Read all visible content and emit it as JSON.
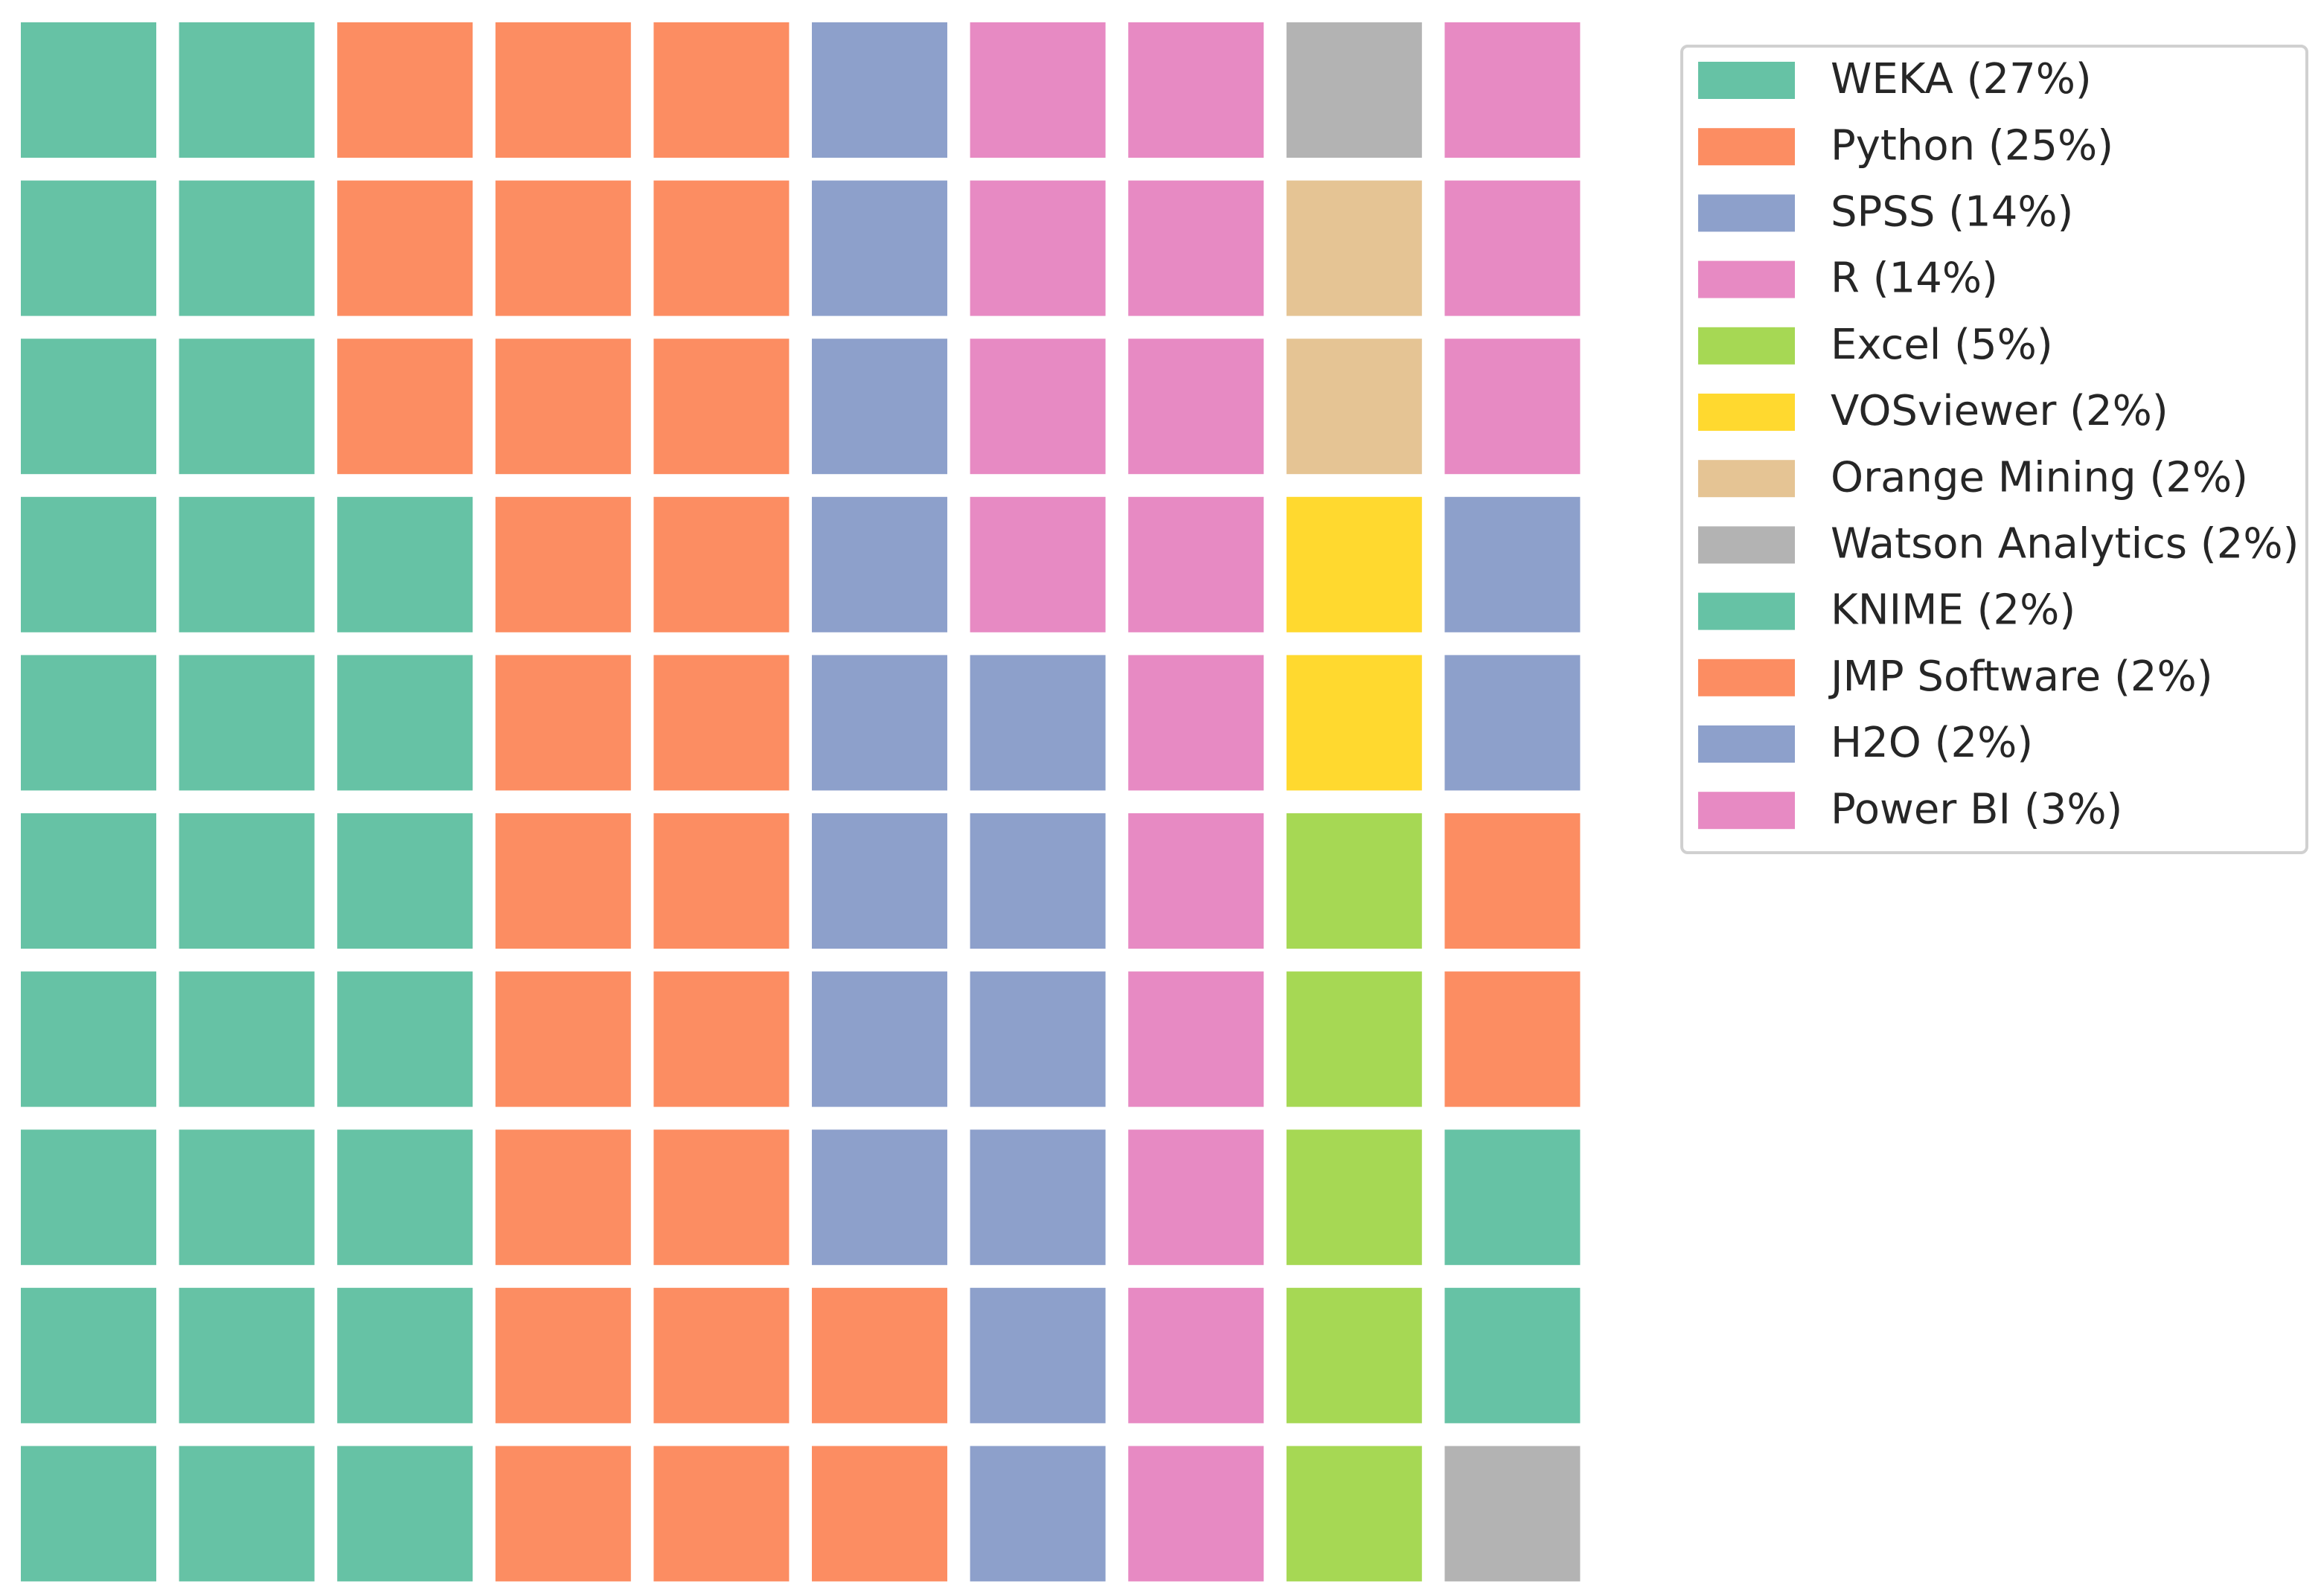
{
  "chart_data": {
    "type": "waffle",
    "categories": [
      "WEKA (27%)",
      "Python (25%)",
      "SPSS (14%)",
      "R (14%)",
      "Excel (5%)",
      "VOSviewer (2%)",
      "Orange Mining (2%)",
      "Watson Analytics (2%)",
      "KNIME (2%)",
      "JMP Software (2%)",
      "H2O (2%)",
      "Power BI (3%)"
    ],
    "values": [
      27,
      25,
      14,
      14,
      5,
      2,
      2,
      2,
      2,
      2,
      2,
      3
    ],
    "colors": [
      "#66c2a5",
      "#fc8d62",
      "#8da0cb",
      "#e78ac3",
      "#a6d854",
      "#ffd92f",
      "#e5c494",
      "#b3b3b3",
      "#66c2a5",
      "#fc8d62",
      "#8da0cb",
      "#e78ac3"
    ],
    "legend": "upper right"
  }
}
